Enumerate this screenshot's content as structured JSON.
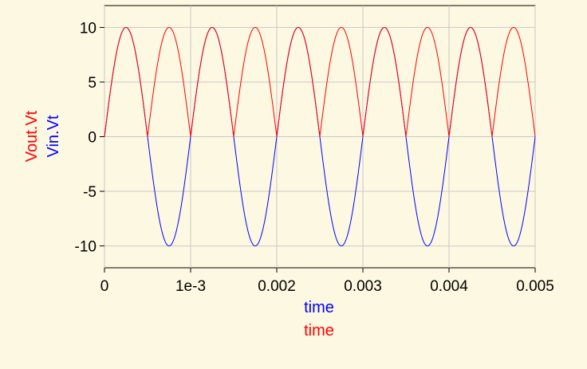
{
  "chart_data": {
    "type": "line",
    "title": "",
    "xlabels": [
      {
        "text": "time",
        "color": "#0000ff"
      },
      {
        "text": "time",
        "color": "#ff0000"
      }
    ],
    "ylabels": [
      {
        "text": "Vout.Vt",
        "color": "#ff0000"
      },
      {
        "text": "Vin.Vt",
        "color": "#0000ff"
      }
    ],
    "xlim": [
      0,
      0.005
    ],
    "ylim": [
      -12,
      12
    ],
    "x_ticks": [
      {
        "value": 0,
        "label": "0"
      },
      {
        "value": 0.001,
        "label": "1e-3"
      },
      {
        "value": 0.002,
        "label": "0.002"
      },
      {
        "value": 0.003,
        "label": "0.003"
      },
      {
        "value": 0.004,
        "label": "0.004"
      },
      {
        "value": 0.005,
        "label": "0.005"
      }
    ],
    "y_ticks": [
      {
        "value": 10,
        "label": "10"
      },
      {
        "value": 5,
        "label": "5"
      },
      {
        "value": 0,
        "label": "0"
      },
      {
        "value": -5,
        "label": "-5"
      },
      {
        "value": -10,
        "label": "-10"
      }
    ],
    "grid": true,
    "series": [
      {
        "name": "Vin.Vt",
        "color": "#0000ff",
        "function": "sine",
        "amplitude": 10,
        "frequency_hz": 1000,
        "x": [
          0,
          0.00025,
          0.0005,
          0.00075,
          0.001,
          0.00125,
          0.0015,
          0.00175,
          0.002,
          0.00225,
          0.0025,
          0.00275,
          0.003,
          0.00325,
          0.0035,
          0.00375,
          0.004,
          0.00425,
          0.0045,
          0.00475,
          0.005
        ],
        "y": [
          0,
          10,
          0,
          -10,
          0,
          10,
          0,
          -10,
          0,
          10,
          0,
          -10,
          0,
          10,
          0,
          -10,
          0,
          10,
          0,
          -10,
          0
        ]
      },
      {
        "name": "Vout.Vt",
        "color": "#ff0000",
        "function": "rectified_sine",
        "amplitude": 10,
        "frequency_hz": 1000,
        "x": [
          0,
          0.00025,
          0.0005,
          0.00075,
          0.001,
          0.00125,
          0.0015,
          0.00175,
          0.002,
          0.00225,
          0.0025,
          0.00275,
          0.003,
          0.00325,
          0.0035,
          0.00375,
          0.004,
          0.00425,
          0.0045,
          0.00475,
          0.005
        ],
        "y": [
          0,
          10,
          0,
          10,
          0,
          10,
          0,
          10,
          0,
          10,
          0,
          10,
          0,
          10,
          0,
          10,
          0,
          10,
          0,
          10,
          0
        ]
      }
    ]
  }
}
